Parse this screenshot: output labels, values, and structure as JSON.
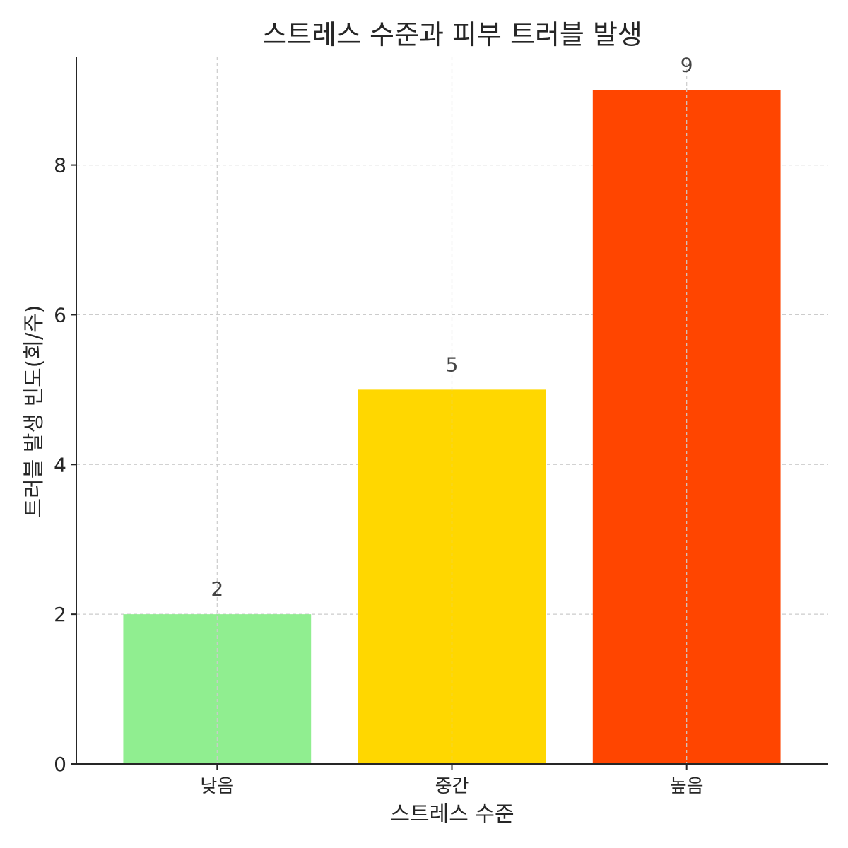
{
  "chart_data": {
    "type": "bar",
    "title": "스트레스 수준과 피부 트러블 발생",
    "xlabel": "스트레스 수준",
    "ylabel": "트러블 발생 빈도(회/주)",
    "categories": [
      "낮음",
      "중간",
      "높음"
    ],
    "values": [
      2,
      5,
      9
    ],
    "colors": [
      "#90EE90",
      "#FFD700",
      "#FF4500"
    ],
    "ylim": [
      0,
      9.45
    ],
    "yticks": [
      0,
      2,
      4,
      6,
      8
    ],
    "grid": true,
    "data_labels": true
  }
}
